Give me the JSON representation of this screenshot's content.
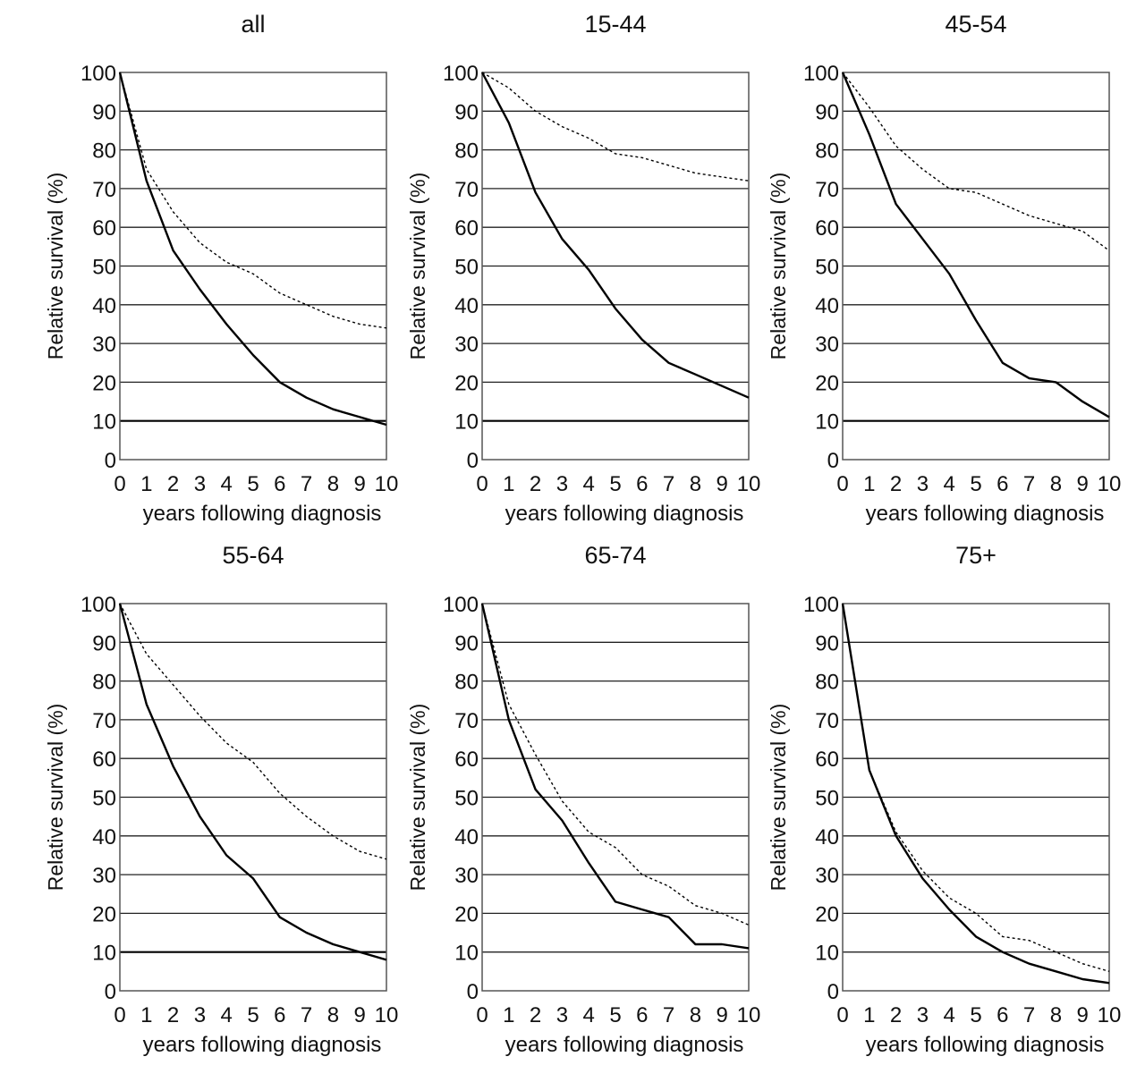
{
  "chart_data": [
    {
      "type": "line",
      "title": "all",
      "xlabel": "years following diagnosis",
      "ylabel": "Relative survival (%)",
      "x": [
        0,
        1,
        2,
        3,
        4,
        5,
        6,
        7,
        8,
        9,
        10
      ],
      "xticks": [
        "0",
        "1",
        "2",
        "3",
        "4",
        "5",
        "6",
        "7",
        "8",
        "9",
        "10"
      ],
      "yticks": [
        "0",
        "10",
        "20",
        "30",
        "40",
        "50",
        "60",
        "70",
        "80",
        "90",
        "100"
      ],
      "xlim": [
        0,
        10
      ],
      "ylim": [
        0,
        100
      ],
      "grid": true,
      "reference_line": 10,
      "series": [
        {
          "name": "solid",
          "style": "solid",
          "values": [
            100,
            72,
            54,
            44,
            35,
            27,
            20,
            16,
            13,
            11,
            9
          ]
        },
        {
          "name": "dotted",
          "style": "dotted",
          "values": [
            100,
            75,
            64,
            56,
            51,
            48,
            43,
            40,
            37,
            35,
            34
          ]
        }
      ]
    },
    {
      "type": "line",
      "title": "15-44",
      "xlabel": "years following diagnosis",
      "ylabel": "Relative survival (%)",
      "x": [
        0,
        1,
        2,
        3,
        4,
        5,
        6,
        7,
        8,
        9,
        10
      ],
      "xticks": [
        "0",
        "1",
        "2",
        "3",
        "4",
        "5",
        "6",
        "7",
        "8",
        "9",
        "10"
      ],
      "yticks": [
        "0",
        "10",
        "20",
        "30",
        "40",
        "50",
        "60",
        "70",
        "80",
        "90",
        "100"
      ],
      "xlim": [
        0,
        10
      ],
      "ylim": [
        0,
        100
      ],
      "grid": true,
      "reference_line": 10,
      "series": [
        {
          "name": "solid",
          "style": "solid",
          "values": [
            100,
            87,
            69,
            57,
            49,
            39,
            31,
            25,
            22,
            19,
            16
          ]
        },
        {
          "name": "dotted",
          "style": "dotted",
          "values": [
            100,
            96,
            90,
            86,
            83,
            79,
            78,
            76,
            74,
            73,
            72
          ]
        }
      ]
    },
    {
      "type": "line",
      "title": "45-54",
      "xlabel": "years following diagnosis",
      "ylabel": "Relative survival (%)",
      "x": [
        0,
        1,
        2,
        3,
        4,
        5,
        6,
        7,
        8,
        9,
        10
      ],
      "xticks": [
        "0",
        "1",
        "2",
        "3",
        "4",
        "5",
        "6",
        "7",
        "8",
        "9",
        "10"
      ],
      "yticks": [
        "0",
        "10",
        "20",
        "30",
        "40",
        "50",
        "60",
        "70",
        "80",
        "90",
        "100"
      ],
      "xlim": [
        0,
        10
      ],
      "ylim": [
        0,
        100
      ],
      "grid": true,
      "reference_line": 10,
      "series": [
        {
          "name": "solid",
          "style": "solid",
          "values": [
            100,
            84,
            66,
            57,
            48,
            36,
            25,
            21,
            20,
            15,
            11
          ]
        },
        {
          "name": "dotted",
          "style": "dotted",
          "values": [
            100,
            91,
            81,
            75,
            70,
            69,
            66,
            63,
            61,
            59,
            54
          ]
        }
      ]
    },
    {
      "type": "line",
      "title": "55-64",
      "xlabel": "years following diagnosis",
      "ylabel": "Relative survival (%)",
      "x": [
        0,
        1,
        2,
        3,
        4,
        5,
        6,
        7,
        8,
        9,
        10
      ],
      "xticks": [
        "0",
        "1",
        "2",
        "3",
        "4",
        "5",
        "6",
        "7",
        "8",
        "9",
        "10"
      ],
      "yticks": [
        "0",
        "10",
        "20",
        "30",
        "40",
        "50",
        "60",
        "70",
        "80",
        "90",
        "100"
      ],
      "xlim": [
        0,
        10
      ],
      "ylim": [
        0,
        100
      ],
      "grid": true,
      "reference_line": 10,
      "series": [
        {
          "name": "solid",
          "style": "solid",
          "values": [
            100,
            74,
            58,
            45,
            35,
            29,
            19,
            15,
            12,
            10,
            8
          ]
        },
        {
          "name": "dotted",
          "style": "dotted",
          "values": [
            100,
            87,
            79,
            71,
            64,
            59,
            51,
            45,
            40,
            36,
            34
          ]
        }
      ]
    },
    {
      "type": "line",
      "title": "65-74",
      "xlabel": "years following diagnosis",
      "ylabel": "Relative survival (%)",
      "x": [
        0,
        1,
        2,
        3,
        4,
        5,
        6,
        7,
        8,
        9,
        10
      ],
      "xticks": [
        "0",
        "1",
        "2",
        "3",
        "4",
        "5",
        "6",
        "7",
        "8",
        "9",
        "10"
      ],
      "yticks": [
        "0",
        "10",
        "20",
        "30",
        "40",
        "50",
        "60",
        "70",
        "80",
        "90",
        "100"
      ],
      "xlim": [
        0,
        10
      ],
      "ylim": [
        0,
        100
      ],
      "grid": true,
      "reference_line": null,
      "series": [
        {
          "name": "solid",
          "style": "solid",
          "values": [
            100,
            70,
            52,
            44,
            33,
            23,
            21,
            19,
            12,
            12,
            11
          ]
        },
        {
          "name": "dotted",
          "style": "dotted",
          "values": [
            100,
            74,
            61,
            49,
            41,
            37,
            30,
            27,
            22,
            20,
            17
          ]
        }
      ]
    },
    {
      "type": "line",
      "title": "75+",
      "xlabel": "years following diagnosis",
      "ylabel": "Relative survival (%)",
      "x": [
        0,
        1,
        2,
        3,
        4,
        5,
        6,
        7,
        8,
        9,
        10
      ],
      "xticks": [
        "0",
        "1",
        "2",
        "3",
        "4",
        "5",
        "6",
        "7",
        "8",
        "9",
        "10"
      ],
      "yticks": [
        "0",
        "10",
        "20",
        "30",
        "40",
        "50",
        "60",
        "70",
        "80",
        "90",
        "100"
      ],
      "xlim": [
        0,
        10
      ],
      "ylim": [
        0,
        100
      ],
      "grid": true,
      "reference_line": null,
      "series": [
        {
          "name": "solid",
          "style": "solid",
          "values": [
            100,
            57,
            40,
            29,
            21,
            14,
            10,
            7,
            5,
            3,
            2
          ]
        },
        {
          "name": "dotted",
          "style": "dotted",
          "values": [
            100,
            57,
            41,
            31,
            24,
            20,
            14,
            13,
            10,
            7,
            5
          ]
        }
      ]
    }
  ]
}
